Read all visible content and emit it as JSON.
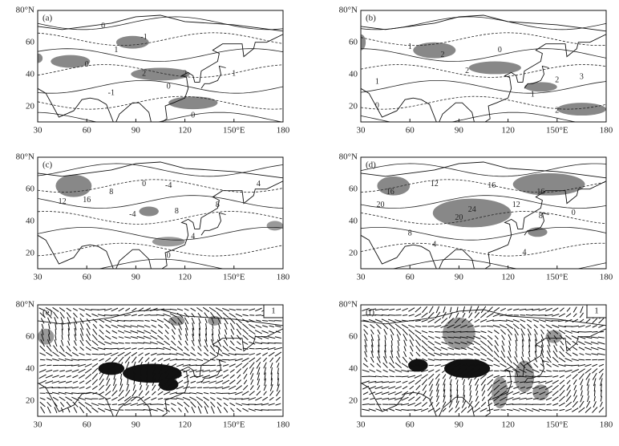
{
  "panels": [
    {
      "label": "(a)",
      "y_labels": [
        "80°N",
        "60",
        "40",
        "20"
      ],
      "x_labels": [
        "30",
        "60",
        "90",
        "120",
        "150°E",
        "180"
      ],
      "contour_labels": [
        "0",
        "-1",
        "1",
        "0",
        "2",
        "2",
        "-1",
        "0",
        "1",
        "0"
      ]
    },
    {
      "label": "(b)",
      "y_labels": [
        "80°N",
        "60",
        "40",
        "20"
      ],
      "x_labels": [
        "30",
        "60",
        "90",
        "120",
        "150°E",
        "180"
      ],
      "contour_labels": [
        "1",
        "2",
        "0",
        "2",
        "1",
        "0",
        "2",
        "3",
        "2",
        "1"
      ]
    },
    {
      "label": "(c)",
      "y_labels": [
        "80°N",
        "60",
        "40",
        "20"
      ],
      "x_labels": [
        "30",
        "60",
        "90",
        "120",
        "150°E",
        "180"
      ],
      "contour_labels": [
        "12",
        "16",
        "8",
        "0",
        "-4",
        "8",
        "-4",
        "4",
        "8",
        "0",
        "4"
      ]
    },
    {
      "label": "(d)",
      "y_labels": [
        "80°N",
        "60",
        "40",
        "20"
      ],
      "x_labels": [
        "30",
        "60",
        "90",
        "120",
        "150°E",
        "180"
      ],
      "contour_labels": [
        "16",
        "20",
        "12",
        "16",
        "20",
        "24",
        "8",
        "4",
        "16",
        "12",
        "8",
        "4",
        "0"
      ]
    },
    {
      "label": "(e)",
      "y_labels": [
        "80°N",
        "60",
        "40",
        "20"
      ],
      "x_labels": [
        "30",
        "60",
        "90",
        "120",
        "150°E",
        "180"
      ],
      "reference_vector": "1"
    },
    {
      "label": "(f)",
      "y_labels": [
        "80°N",
        "60",
        "40",
        "20"
      ],
      "x_labels": [
        "30",
        "60",
        "90",
        "120",
        "150°E",
        "180"
      ],
      "reference_vector": "1"
    }
  ]
}
